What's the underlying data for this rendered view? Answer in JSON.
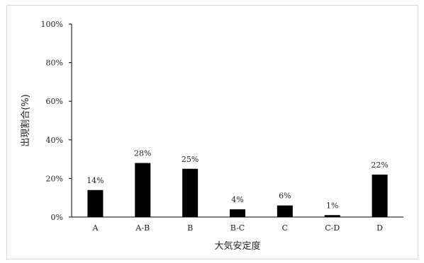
{
  "chart_data": {
    "type": "bar",
    "title": "",
    "xlabel": "大気安定度",
    "ylabel": "出現割合(%)",
    "categories": [
      "A",
      "A-B",
      "B",
      "B-C",
      "C",
      "C-D",
      "D"
    ],
    "values": [
      14,
      28,
      25,
      4,
      6,
      1,
      22
    ],
    "data_labels": [
      "14%",
      "28%",
      "25%",
      "4%",
      "6%",
      "1%",
      "22%"
    ],
    "ylim": [
      0,
      100
    ],
    "yticks": [
      0,
      20,
      40,
      60,
      80,
      100
    ],
    "ytick_labels": [
      "0%",
      "20%",
      "40%",
      "60%",
      "80%",
      "100%"
    ],
    "grid": false,
    "legend": "none",
    "colors": {
      "bar": "#000000",
      "axis": "#000000",
      "text": "#222222",
      "border": "#d9d9d9"
    }
  }
}
